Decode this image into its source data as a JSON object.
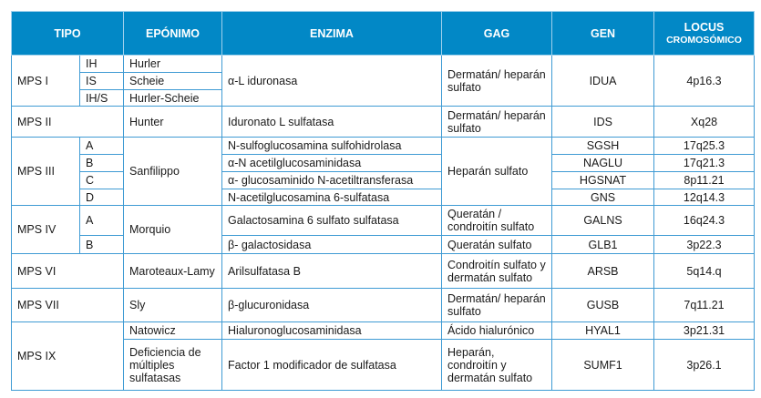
{
  "headers": {
    "tipo": "TIPO",
    "eponimo": "EPÓNIMO",
    "enzima": "ENZIMA",
    "gag": "GAG",
    "gen": "GEN",
    "locus_1": "LOCUS",
    "locus_2": "CROMOSÓMICO"
  },
  "colors": {
    "header_bg": "#0288c6",
    "border": "#3f9bd4"
  },
  "rows": {
    "mps1": {
      "tipo": "MPS I",
      "sub": [
        "IH",
        "IS",
        "IH/S"
      ],
      "eponimo": [
        "Hurler",
        "Scheie",
        "Hurler-Scheie"
      ],
      "enzima": "α-L iduronasa",
      "gag": "Dermatán/ heparán sulfato",
      "gen": "IDUA",
      "locus": "4p16.3"
    },
    "mps2": {
      "tipo": "MPS II",
      "eponimo": "Hunter",
      "enzima": "Iduronato L sulfatasa",
      "gag": "Dermatán/ heparán sulfato",
      "gen": "IDS",
      "locus": "Xq28"
    },
    "mps3": {
      "tipo": "MPS III",
      "sub": [
        "A",
        "B",
        "C",
        "D"
      ],
      "eponimo": "Sanfilippo",
      "enzima": [
        "N-sulfoglucosamina sulfohidrolasa",
        "α-N acetilglucosaminidasa",
        "α- glucosaminido N-acetiltransferasa",
        "N-acetilglucosamina 6-sulfatasa"
      ],
      "gag": "Heparán sulfato",
      "gen": [
        "SGSH",
        "NAGLU",
        "HGSNAT",
        "GNS"
      ],
      "locus": [
        "17q25.3",
        "17q21.3",
        "8p11.21",
        "12q14.3"
      ]
    },
    "mps4": {
      "tipo": "MPS IV",
      "sub": [
        "A",
        "B"
      ],
      "eponimo": "Morquio",
      "enzima": [
        "Galactosamina 6 sulfato sulfatasa",
        "β- galactosidasa"
      ],
      "gag": [
        "Queratán / condroitín sulfato",
        "Queratán sulfato"
      ],
      "gen": [
        "GALNS",
        "GLB1"
      ],
      "locus": [
        "16q24.3",
        "3p22.3"
      ]
    },
    "mps6": {
      "tipo": "MPS VI",
      "eponimo": "Maroteaux-Lamy",
      "enzima": "Arilsulfatasa B",
      "gag": "Condroitín sulfato y dermatán sulfato",
      "gen": "ARSB",
      "locus": "5q14.q"
    },
    "mps7": {
      "tipo": "MPS VII",
      "eponimo": "Sly",
      "enzima": "β-glucuronidasa",
      "gag": "Dermatán/ heparán sulfato",
      "gen": "GUSB",
      "locus": "7q11.21"
    },
    "mps9": {
      "tipo": "MPS IX",
      "eponimo": [
        "Natowicz",
        "Deficiencia de múltiples sulfatasas"
      ],
      "enzima": [
        "Hialuronoglucosaminidasa",
        "Factor 1 modificador de sulfatasa"
      ],
      "gag": [
        "Ácido hialurónico",
        "Heparán, condroitín y dermatán sulfato"
      ],
      "gen": [
        "HYAL1",
        "SUMF1"
      ],
      "locus": [
        "3p21.31",
        "3p26.1"
      ]
    }
  }
}
